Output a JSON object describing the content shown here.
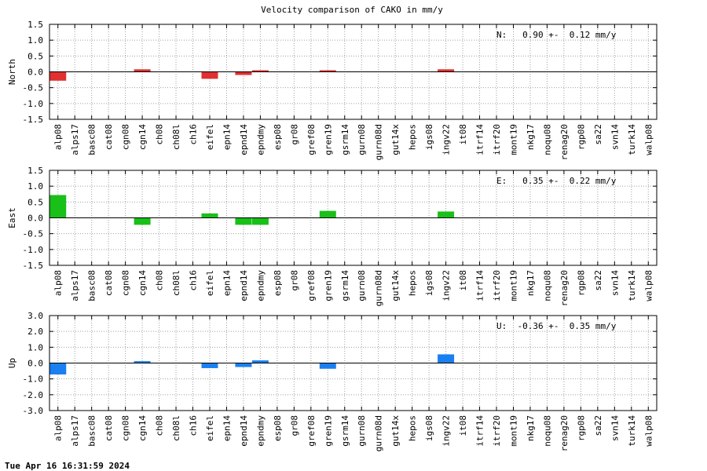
{
  "chart_data": {
    "type": "bar",
    "title": "Velocity comparison of CAKO in mm/y",
    "footer": "Tue Apr 16 16:31:59 2024",
    "categories": [
      "alp08",
      "alps17",
      "basc08",
      "cat08",
      "cgn08",
      "cgn14",
      "ch08",
      "ch08l",
      "ch16",
      "eifel",
      "epn14",
      "epnd14",
      "epndmy",
      "esp08",
      "gr08",
      "gref08",
      "gren19",
      "gsrm14",
      "gurn08",
      "gurn08d",
      "gut14x",
      "hepos",
      "igs08",
      "ingv22",
      "it08",
      "itrf14",
      "itrf20",
      "mont19",
      "nkg17",
      "noqu08",
      "renag20",
      "rgp08",
      "sa22",
      "svn14",
      "turk14",
      "walp08"
    ],
    "grid": true,
    "panels": [
      {
        "ylabel": "North",
        "ylim": [
          -1.5,
          1.5
        ],
        "yticks": [
          "1.5",
          "1.0",
          "0.5",
          "0.0",
          "-0.5",
          "-1.0",
          "-1.5"
        ],
        "stat": "N:   0.90 +-  0.12 mm/y",
        "color": "#e03030",
        "values": [
          -0.28,
          null,
          null,
          null,
          null,
          0.08,
          null,
          null,
          null,
          -0.22,
          null,
          -0.1,
          0.03,
          null,
          null,
          null,
          0.05,
          null,
          null,
          null,
          null,
          null,
          null,
          0.08,
          null,
          null,
          null,
          null,
          null,
          null,
          null,
          null,
          null,
          null,
          null,
          null
        ]
      },
      {
        "ylabel": "East",
        "ylim": [
          -1.5,
          1.5
        ],
        "yticks": [
          "1.5",
          "1.0",
          "0.5",
          "0.0",
          "-0.5",
          "-1.0",
          "-1.5"
        ],
        "stat": "E:   0.35 +-  0.22 mm/y",
        "color": "#18c018",
        "values": [
          0.72,
          null,
          null,
          null,
          null,
          -0.22,
          null,
          null,
          null,
          0.14,
          null,
          -0.22,
          -0.22,
          null,
          null,
          null,
          0.22,
          null,
          null,
          null,
          null,
          null,
          null,
          0.2,
          null,
          null,
          null,
          null,
          null,
          null,
          null,
          null,
          null,
          null,
          null,
          null
        ]
      },
      {
        "ylabel": "Up",
        "ylim": [
          -3.0,
          3.0
        ],
        "yticks": [
          "3.0",
          "2.0",
          "1.0",
          "0.0",
          "-1.0",
          "-2.0",
          "-3.0"
        ],
        "stat": "U:  -0.36 +-  0.35 mm/y",
        "color": "#1a7ff0",
        "values": [
          -0.72,
          null,
          null,
          null,
          null,
          0.12,
          null,
          null,
          null,
          -0.32,
          null,
          -0.25,
          0.17,
          null,
          null,
          null,
          -0.36,
          null,
          null,
          null,
          null,
          null,
          null,
          0.55,
          null,
          null,
          null,
          null,
          null,
          null,
          null,
          null,
          null,
          null,
          null,
          null
        ]
      }
    ]
  }
}
